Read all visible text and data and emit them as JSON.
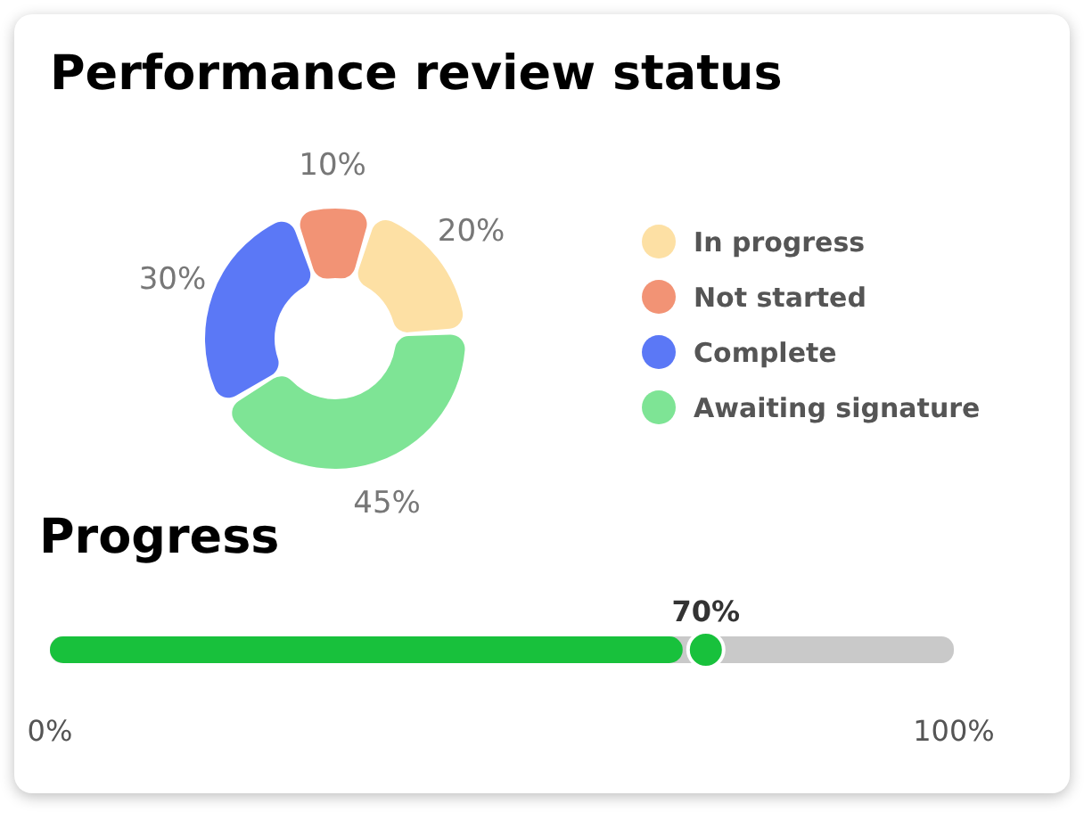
{
  "chart_data": [
    {
      "type": "donut",
      "title": "Performance review status",
      "categories": [
        "In progress",
        "Not started",
        "Complete",
        "Awaiting signature"
      ],
      "values": [
        20,
        10,
        30,
        45
      ],
      "colors": [
        "#fde0a4",
        "#f29375",
        "#5b78f6",
        "#7ee495"
      ],
      "value_labels": [
        "20%",
        "10%",
        "30%",
        "45%"
      ],
      "legend": "right"
    },
    {
      "type": "bar",
      "orientation": "horizontal",
      "title": "Progress",
      "categories": [
        null
      ],
      "values": [
        70
      ],
      "color": "#18c13c",
      "xlim": [
        0,
        100
      ],
      "xticks": [
        {
          "value": 0,
          "label": "0%"
        },
        {
          "value": 100,
          "label": "100%"
        }
      ],
      "value_labels": [
        "70%"
      ]
    }
  ]
}
